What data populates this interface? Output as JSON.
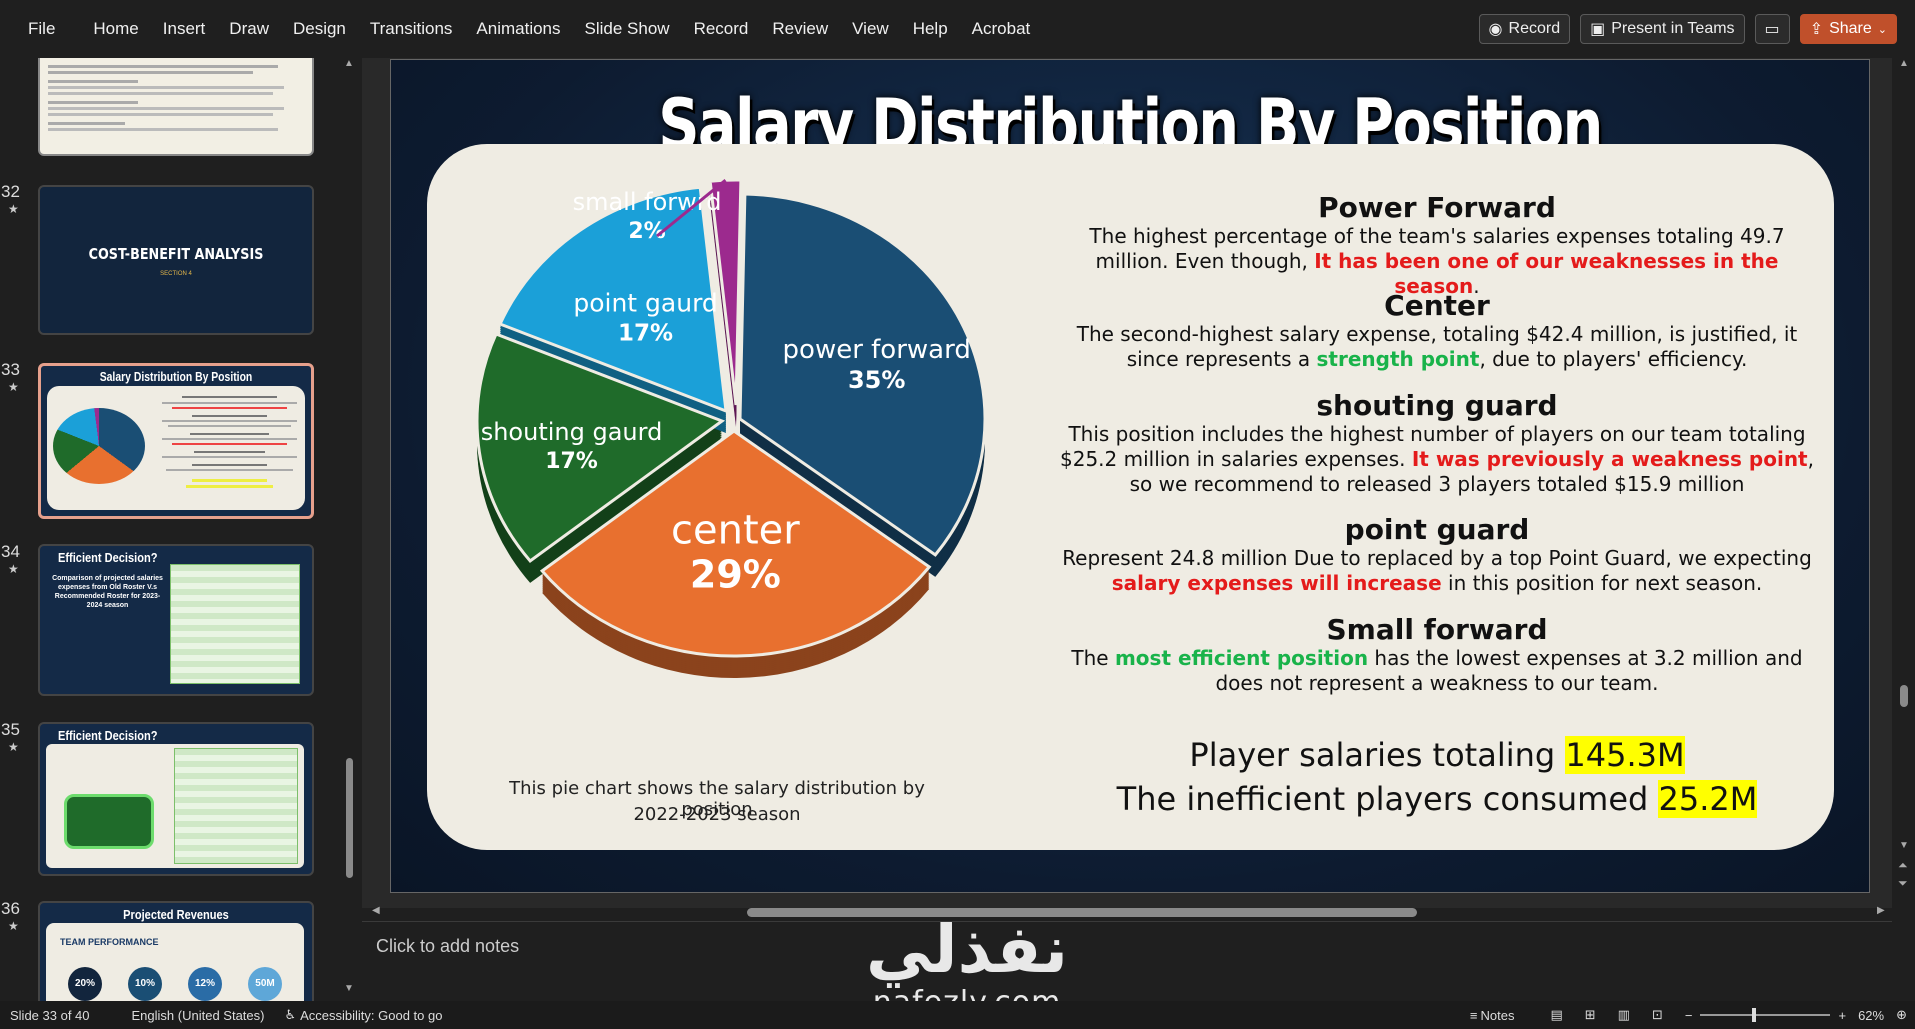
{
  "ribbon": {
    "tabs": [
      "File",
      "Home",
      "Insert",
      "Draw",
      "Design",
      "Transitions",
      "Animations",
      "Slide Show",
      "Record",
      "Review",
      "View",
      "Help",
      "Acrobat"
    ],
    "record_label": "Record",
    "present_label": "Present in Teams",
    "share_label": "Share"
  },
  "thumbnails": [
    {
      "num": "32",
      "title": "COST-BENEFIT ANALYSIS",
      "subtitle": "SECTION 4"
    },
    {
      "num": "33",
      "title": "Salary Distribution By Position"
    },
    {
      "num": "34",
      "title": "Efficient Decision?",
      "body": "Comparison of projected salaries expenses from Old Roster V.s Recommended Roster for 2023-2024 season"
    },
    {
      "num": "35",
      "title": "Efficient Decision?"
    },
    {
      "num": "36",
      "title": "Projected Revenues",
      "subtitle": "TEAM PERFORMANCE",
      "circles": [
        "20%",
        "10%",
        "12%",
        "50M"
      ]
    }
  ],
  "slide": {
    "title": "Salary Distribution By Position",
    "pie_caption_1": "This pie chart shows the salary distribution by position",
    "pie_caption_2": "2022-2023 season",
    "sections": {
      "pf": {
        "heading": "Power Forward",
        "t1": "The highest percentage of the team's salaries expenses totaling 49.7 million. Even though, ",
        "red": "It has been one of our weaknesses in the season",
        "t2": "."
      },
      "c": {
        "heading": "Center",
        "t1": "The second-highest salary expense, totaling $42.4 million, is justified, it since represents a ",
        "green": "strength point",
        "t2": ", due to players' efficiency."
      },
      "sg": {
        "heading": "shouting guard",
        "t1": "This position includes the highest number of players on our team totaling $25.2 million in salaries expenses. ",
        "red": "It was previously a weakness point",
        "t2": ", so we recommend to released 3 players totaled $15.9 million"
      },
      "pg": {
        "heading": "point guard",
        "t1": "Represent 24.8 million Due to replaced by a top Point Guard, we expecting ",
        "red": "salary expenses will increase",
        "t2": " in this position for next season."
      },
      "sf": {
        "heading": "Small forward",
        "t1": "The ",
        "green": "most efficient position",
        "t2": " has the lowest expenses at 3.2 million and does not represent a weakness to our team."
      }
    },
    "total_label": "Player salaries totaling ",
    "total_value": "145.3M",
    "ineff_label": "The inefficient players consumed ",
    "ineff_value": "25.2M"
  },
  "chart_data": {
    "type": "pie",
    "categories": [
      "power forward",
      "center",
      "shouting gaurd",
      "point gaurd",
      "small forwrd"
    ],
    "values": [
      35,
      29,
      17,
      17,
      2
    ],
    "labels": [
      "35%",
      "29%",
      "17%",
      "17%",
      "2%"
    ],
    "colors": [
      "#1a4e74",
      "#e8702f",
      "#1f6b2a",
      "#1ba0d8",
      "#9c2a8e"
    ]
  },
  "notes": {
    "placeholder": "Click to add notes"
  },
  "watermark": {
    "arabic": "نفذلي",
    "latin": "nafezly.com"
  },
  "status": {
    "slide": "Slide 33 of 40",
    "language": "English (United States)",
    "accessibility": "Accessibility: Good to go",
    "notes": "Notes",
    "zoom": "62%"
  }
}
